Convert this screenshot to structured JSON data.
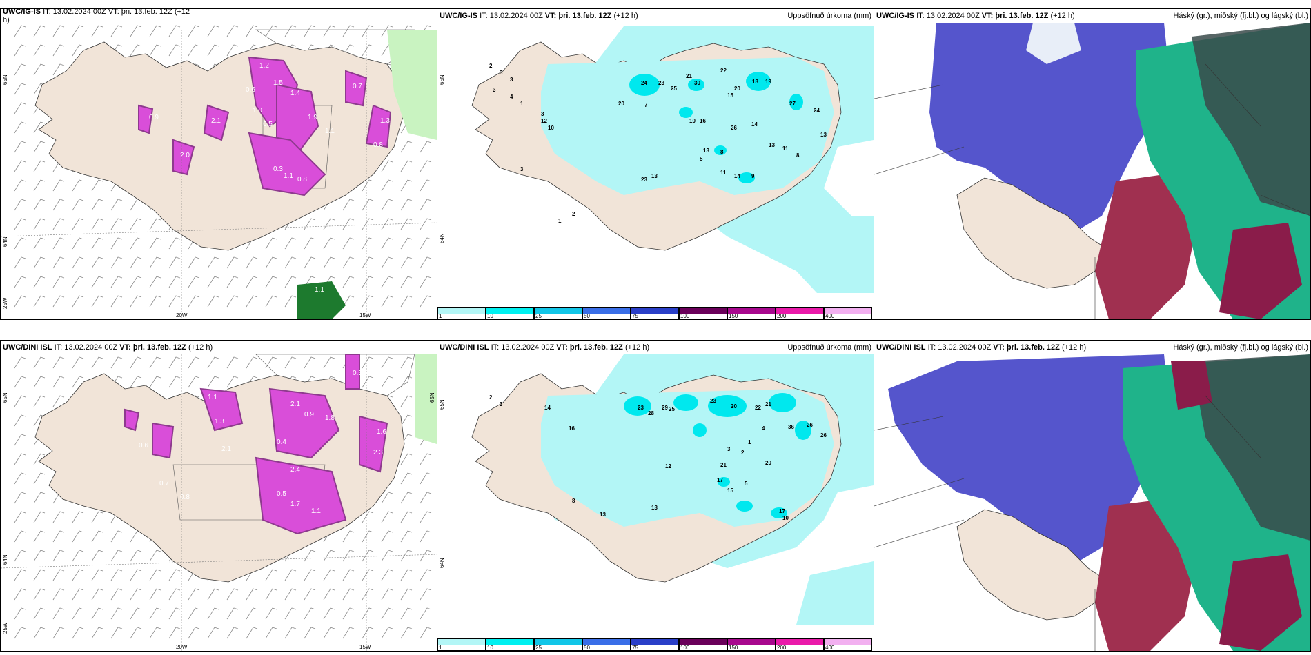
{
  "panels": [
    {
      "id": "wind-top",
      "model_partial": "UWC/IG-IS",
      "header_partial": "IT: 13.02.2024 00Z VT: þri. 13.feb. 12Z (+12",
      "header_wrap": "h)",
      "lat_labels": [
        "65N",
        "64N",
        "25W"
      ],
      "lon_labels": [
        "20W",
        "15W"
      ],
      "values": [
        "1.2",
        "1.5",
        "0.6",
        "1.0",
        "0.5",
        "1.4",
        "1.9",
        "1.1",
        "0.7",
        "1.3",
        "0.8",
        "2.0",
        "0.9",
        "2.1",
        "0.3",
        "1.1",
        "0.8",
        "2.0",
        "1.1"
      ]
    },
    {
      "id": "precip-top",
      "model": "UWC/IG-IS",
      "it": "IT: 13.02.2024 00Z",
      "vt_label": "VT:",
      "vt": "þri. 13.feb. 12Z",
      "lead": "(+12 h)",
      "title": "Uppsöfnuð úrkoma (mm)",
      "lat_labels": [
        "65N",
        "64N"
      ],
      "values": [
        "2",
        "3",
        "3",
        "3",
        "4",
        "1",
        "3",
        "24",
        "23",
        "25",
        "21",
        "30",
        "22",
        "15",
        "20",
        "18",
        "19",
        "27",
        "24",
        "20",
        "7",
        "13",
        "10",
        "16",
        "26",
        "13",
        "8",
        "9",
        "23",
        "5",
        "14",
        "13",
        "11",
        "8",
        "13",
        "11",
        "14",
        "10",
        "12",
        "3",
        "2",
        "1"
      ]
    },
    {
      "id": "cloud-top",
      "model": "UWC/IG-IS",
      "it": "IT: 13.02.2024 00Z",
      "vt_label": "VT:",
      "vt": "þri. 13.feb. 12Z",
      "lead": "(+12 h)",
      "title": "Háský (gr.), miðský (fj.bl.) og lágský (bl.)"
    },
    {
      "id": "wind-bottom",
      "model": "UWC/DINI ISL",
      "it": "IT: 13.02.2024 00Z",
      "vt_label": "VT:",
      "vt": "þri. 13.feb. 12Z",
      "lead": "(+12 h)",
      "lat_labels": [
        "65N",
        "64N",
        "25W",
        "65N"
      ],
      "lon_labels": [
        "20W",
        "15W"
      ],
      "values": [
        "1.1",
        "2.1",
        "0.9",
        "1.8",
        "0.4",
        "1.3",
        "2.4",
        "0.3",
        "1.6",
        "2.3",
        "0.8",
        "0.5",
        "1.7",
        "1.1",
        "0.6",
        "2.1",
        "0.7"
      ]
    },
    {
      "id": "precip-bottom",
      "model": "UWC/DINI ISL",
      "it": "IT: 13.02.2024 00Z",
      "vt_label": "VT:",
      "vt": "þri. 13.feb. 12Z",
      "lead": "(+12 h)",
      "title": "Uppsöfnuð úrkoma (mm)",
      "lat_labels": [
        "65N",
        "64N"
      ],
      "values": [
        "2",
        "3",
        "14",
        "16",
        "23",
        "28",
        "29",
        "25",
        "23",
        "20",
        "22",
        "21",
        "26",
        "36",
        "26",
        "17",
        "13",
        "21",
        "20",
        "12",
        "13",
        "8",
        "15",
        "17",
        "10",
        "4",
        "5",
        "1",
        "3",
        "2"
      ]
    },
    {
      "id": "cloud-bottom",
      "model": "UWC/DINI ISL",
      "it": "IT: 13.02.2024 00Z",
      "vt_label": "VT:",
      "vt": "þri. 13.feb. 12Z",
      "lead": "(+12 h)",
      "title": "Háský (gr.), miðský (fj.bl.) og lágský (bl.)"
    }
  ],
  "precip_legend": {
    "labels": [
      "1",
      "10",
      "25",
      "50",
      "75",
      "100",
      "150",
      "200",
      "400"
    ],
    "colors": [
      "#b3f6f6",
      "#00f0f0",
      "#12c6e8",
      "#3a6fe8",
      "#2a3fc8",
      "#6a005a",
      "#a8088e",
      "#ea1aaa",
      "#f2b0f0"
    ]
  },
  "colors": {
    "land": "#f1e4d8",
    "precip_light": "#b3f6f6",
    "precip_mid": "#00e8ee",
    "wind_magenta": "#d94ed9",
    "wind_dark": "#8e3a8e",
    "green_light": "#c9f3c1",
    "green_dark": "#1d7a2e",
    "cloud_high": "#3a4a4a",
    "cloud_mid": "#a03050",
    "cloud_low": "#5555cc",
    "cloud_teal": "#1fb38a"
  }
}
